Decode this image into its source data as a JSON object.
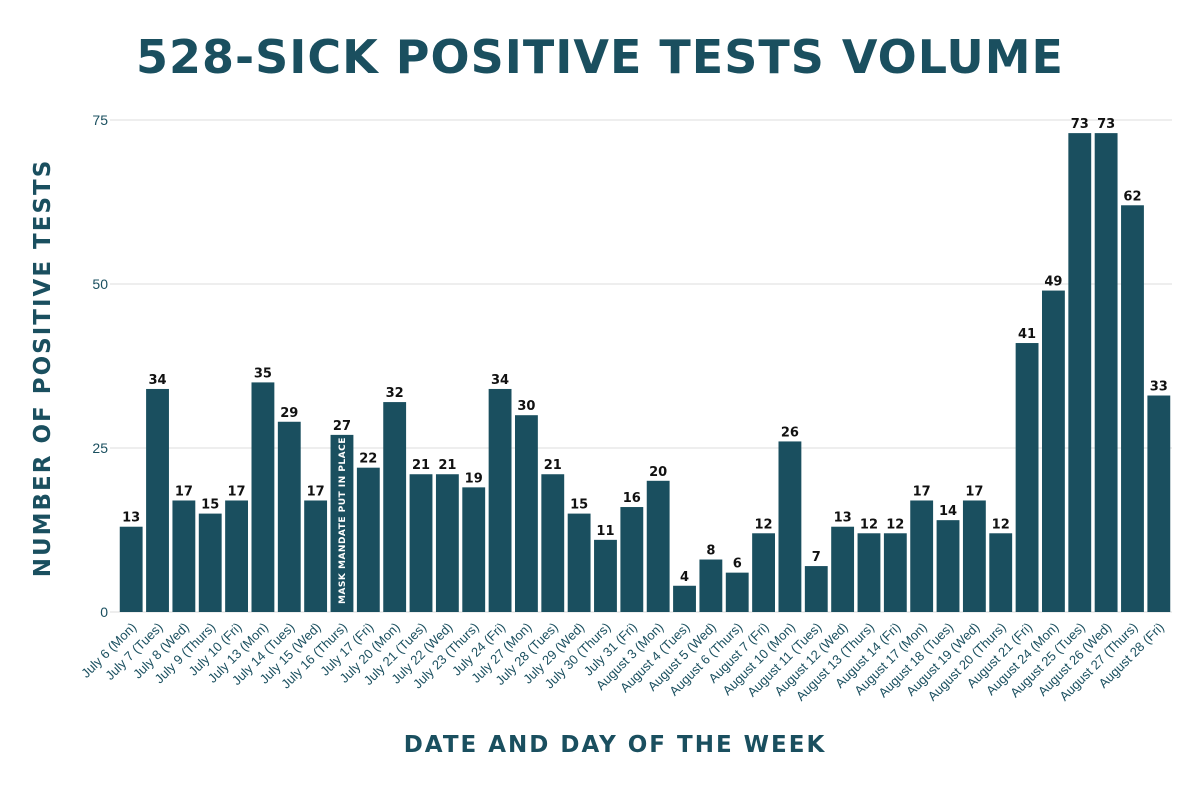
{
  "chart_data": {
    "type": "bar",
    "title": "528-SICK POSITIVE TESTS VOLUME",
    "xlabel": "DATE AND DAY OF THE WEEK",
    "ylabel": "NUMBER OF POSITIVE TESTS",
    "ylim": [
      0,
      75
    ],
    "yticks": [
      "0",
      "25",
      "50",
      "75"
    ],
    "grid": true,
    "bar_color": "#1a4f5f",
    "categories": [
      "July 6 (Mon)",
      "July 7 (Tues)",
      "July 8 (Wed)",
      "July 9 (Thurs)",
      "July 10 (Fri)",
      "July 13 (Mon)",
      "July 14 (Tues)",
      "July 15 (Wed)",
      "July 16 (Thurs)",
      "July 17 (Fri)",
      "July 20 (Mon)",
      "July 21 (Tues)",
      "July 22 (Wed)",
      "July 23 (Thurs)",
      "July 24 (Fri)",
      "July 27 (Mon)",
      "July 28 (Tues)",
      "July 29 (Wed)",
      "July 30 (Thurs)",
      "July 31 (Fri)",
      "August 3 (Mon)",
      "August 4 (Tues)",
      "August 5 (Wed)",
      "August 6 (Thurs)",
      "August 7 (Fri)",
      "August 10 (Mon)",
      "August 11 (Tues)",
      "August 12 (Wed)",
      "August 13 (Thurs)",
      "August 14 (Fri)",
      "August 17 (Mon)",
      "August 18 (Tues)",
      "August 19 (Wed)",
      "August 20 (Thurs)",
      "August 21 (Fri)",
      "August 24 (Mon)",
      "August 25 (Tues)",
      "August 26 (Wed)",
      "August 27 (Thurs)",
      "August 28 (Fri)"
    ],
    "values": [
      13,
      34,
      17,
      15,
      17,
      35,
      29,
      17,
      27,
      22,
      32,
      21,
      21,
      19,
      34,
      30,
      21,
      15,
      11,
      16,
      20,
      4,
      8,
      6,
      12,
      26,
      7,
      13,
      12,
      12,
      17,
      14,
      17,
      12,
      41,
      49,
      73,
      73,
      62,
      33
    ],
    "annotation": {
      "text": "MASK MANDATE PUT IN PLACE",
      "category": "July 16 (Thurs)"
    }
  }
}
